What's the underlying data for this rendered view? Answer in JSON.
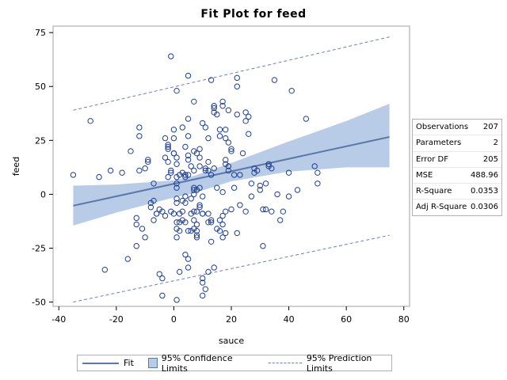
{
  "chart_data": {
    "type": "scatter",
    "title": "Fit Plot for feed",
    "xlabel": "sauce",
    "ylabel": "feed",
    "xlim": [
      -42,
      82
    ],
    "ylim": [
      -52,
      78
    ],
    "xticks": [
      -40,
      -20,
      0,
      20,
      40,
      60,
      80
    ],
    "yticks": [
      -50,
      -25,
      0,
      25,
      50,
      75
    ],
    "grid": false,
    "fit": {
      "x": [
        -35,
        75
      ],
      "y": [
        -5.3,
        26.6
      ]
    },
    "confidence_limits": {
      "x": [
        -35,
        -20,
        0,
        7,
        20,
        40,
        60,
        75
      ],
      "lower": [
        -14.5,
        -8.5,
        -1.5,
        0.5,
        6.0,
        10.5,
        12.5,
        12.5
      ],
      "upper": [
        4.0,
        4.5,
        6.5,
        8.5,
        14.5,
        24.5,
        34.0,
        42.0
      ]
    },
    "prediction_limits": {
      "x": [
        -35,
        75
      ],
      "lower": [
        -50.0,
        -19.0
      ],
      "upper": [
        39.0,
        73.0
      ]
    },
    "points": [
      [
        -35,
        9
      ],
      [
        -29,
        34
      ],
      [
        -26,
        8
      ],
      [
        -24,
        -35
      ],
      [
        -22,
        11
      ],
      [
        -18,
        10
      ],
      [
        -16,
        -30
      ],
      [
        -15,
        20
      ],
      [
        -13,
        -14
      ],
      [
        -13,
        -11
      ],
      [
        -13,
        -24
      ],
      [
        -12,
        31
      ],
      [
        -12,
        27
      ],
      [
        -12,
        11
      ],
      [
        -11,
        -16
      ],
      [
        -10,
        -20
      ],
      [
        -10,
        12
      ],
      [
        -9,
        16
      ],
      [
        -9,
        15
      ],
      [
        -8,
        -6
      ],
      [
        -8,
        -4
      ],
      [
        -7,
        -3
      ],
      [
        -7,
        -12
      ],
      [
        -7,
        5
      ],
      [
        -6,
        -9
      ],
      [
        -6,
        -9
      ],
      [
        -5,
        -7
      ],
      [
        -5,
        -37
      ],
      [
        -4,
        -39
      ],
      [
        -4,
        -8
      ],
      [
        -4,
        -47
      ],
      [
        -3,
        -10
      ],
      [
        -3,
        26
      ],
      [
        -3,
        17
      ],
      [
        -2,
        22
      ],
      [
        -2,
        23
      ],
      [
        -2,
        21
      ],
      [
        -2,
        8
      ],
      [
        -2,
        15
      ],
      [
        -1,
        64
      ],
      [
        -1,
        -8
      ],
      [
        -1,
        10
      ],
      [
        -1,
        11
      ],
      [
        0,
        26
      ],
      [
        0,
        30
      ],
      [
        0,
        -9
      ],
      [
        0,
        19
      ],
      [
        0,
        19
      ],
      [
        1,
        -49
      ],
      [
        1,
        48
      ],
      [
        1,
        -13
      ],
      [
        1,
        -16
      ],
      [
        1,
        -20
      ],
      [
        1,
        8
      ],
      [
        1,
        5
      ],
      [
        1,
        -2
      ],
      [
        1,
        -4
      ],
      [
        1,
        17
      ],
      [
        1,
        14
      ],
      [
        1,
        3
      ],
      [
        2,
        -36
      ],
      [
        2,
        -13
      ],
      [
        2,
        9
      ],
      [
        2,
        -17
      ],
      [
        2,
        -9
      ],
      [
        3,
        10
      ],
      [
        3,
        -12
      ],
      [
        3,
        31
      ],
      [
        3,
        -3
      ],
      [
        3,
        -8
      ],
      [
        4,
        -4
      ],
      [
        4,
        -28
      ],
      [
        4,
        22
      ],
      [
        4,
        9
      ],
      [
        4,
        9
      ],
      [
        4,
        -1
      ],
      [
        4,
        -13
      ],
      [
        4,
        8
      ],
      [
        5,
        16
      ],
      [
        5,
        18
      ],
      [
        5,
        -30
      ],
      [
        5,
        -17
      ],
      [
        5,
        -34
      ],
      [
        5,
        27
      ],
      [
        5,
        35
      ],
      [
        5,
        55
      ],
      [
        5,
        9
      ],
      [
        6,
        -9
      ],
      [
        6,
        -2
      ],
      [
        6,
        -17
      ],
      [
        6,
        13
      ],
      [
        7,
        20
      ],
      [
        7,
        3
      ],
      [
        7,
        -16
      ],
      [
        7,
        2
      ],
      [
        7,
        43
      ],
      [
        7,
        11
      ],
      [
        7,
        0
      ],
      [
        7,
        -12
      ],
      [
        7,
        -8
      ],
      [
        8,
        -17
      ],
      [
        8,
        -20
      ],
      [
        8,
        -19
      ],
      [
        8,
        -14
      ],
      [
        8,
        2
      ],
      [
        8,
        19
      ],
      [
        8,
        -8
      ],
      [
        9,
        17
      ],
      [
        9,
        3
      ],
      [
        9,
        21
      ],
      [
        9,
        13
      ],
      [
        9,
        -6
      ],
      [
        9,
        -5
      ],
      [
        10,
        -1
      ],
      [
        10,
        -9
      ],
      [
        10,
        -9
      ],
      [
        10,
        -39
      ],
      [
        10,
        -41
      ],
      [
        10,
        33
      ],
      [
        10,
        -47
      ],
      [
        11,
        -44
      ],
      [
        11,
        31
      ],
      [
        11,
        12
      ],
      [
        11,
        11
      ],
      [
        12,
        15
      ],
      [
        12,
        11
      ],
      [
        12,
        -9
      ],
      [
        12,
        -36
      ],
      [
        12,
        26
      ],
      [
        12,
        -13
      ],
      [
        13,
        9
      ],
      [
        13,
        -13
      ],
      [
        13,
        -22
      ],
      [
        13,
        -12
      ],
      [
        13,
        53
      ],
      [
        14,
        40
      ],
      [
        14,
        -34
      ],
      [
        14,
        41
      ],
      [
        14,
        38
      ],
      [
        14,
        12
      ],
      [
        15,
        37
      ],
      [
        15,
        3
      ],
      [
        15,
        -16
      ],
      [
        16,
        -17
      ],
      [
        16,
        -12
      ],
      [
        16,
        27
      ],
      [
        16,
        30
      ],
      [
        17,
        -14
      ],
      [
        17,
        -20
      ],
      [
        17,
        43
      ],
      [
        17,
        -10
      ],
      [
        17,
        41
      ],
      [
        17,
        1
      ],
      [
        18,
        30
      ],
      [
        18,
        14
      ],
      [
        18,
        26
      ],
      [
        18,
        16
      ],
      [
        18,
        -8
      ],
      [
        18,
        -18
      ],
      [
        19,
        11
      ],
      [
        19,
        13
      ],
      [
        19,
        39
      ],
      [
        19,
        24
      ],
      [
        20,
        -7
      ],
      [
        20,
        20
      ],
      [
        20,
        21
      ],
      [
        21,
        9
      ],
      [
        21,
        3
      ],
      [
        22,
        54
      ],
      [
        22,
        -18
      ],
      [
        22,
        37
      ],
      [
        22,
        50
      ],
      [
        23,
        9
      ],
      [
        23,
        -5
      ],
      [
        24,
        19
      ],
      [
        25,
        38
      ],
      [
        25,
        -8
      ],
      [
        25,
        34
      ],
      [
        26,
        36
      ],
      [
        26,
        28
      ],
      [
        27,
        -1
      ],
      [
        27,
        5
      ],
      [
        28,
        10
      ],
      [
        28,
        12
      ],
      [
        29,
        11
      ],
      [
        30,
        4
      ],
      [
        30,
        2
      ],
      [
        31,
        -24
      ],
      [
        31,
        -7
      ],
      [
        32,
        5
      ],
      [
        32,
        -7
      ],
      [
        33,
        14
      ],
      [
        33,
        13
      ],
      [
        34,
        -8
      ],
      [
        34,
        12
      ],
      [
        35,
        53
      ],
      [
        36,
        0
      ],
      [
        37,
        -12
      ],
      [
        38,
        -8
      ],
      [
        40,
        -1
      ],
      [
        40,
        10
      ],
      [
        41,
        48
      ],
      [
        43,
        2
      ],
      [
        46,
        35
      ],
      [
        49,
        13
      ],
      [
        50,
        10
      ],
      [
        50,
        5
      ]
    ]
  },
  "stats": [
    {
      "label": "Observations",
      "value": "207"
    },
    {
      "label": "Parameters",
      "value": "2"
    },
    {
      "label": "Error DF",
      "value": "205"
    },
    {
      "label": "MSE",
      "value": "488.96"
    },
    {
      "label": "R-Square",
      "value": "0.0353"
    },
    {
      "label": "Adj R-Square",
      "value": "0.0306"
    }
  ],
  "legend": {
    "fit": "Fit",
    "confidence": "95% Confidence Limits",
    "prediction": "95% Prediction Limits"
  },
  "colors": {
    "fit": "#5b78a8",
    "band": "#b8cce8",
    "point": "#1f3f91",
    "prediction": "#6f7fb8"
  }
}
